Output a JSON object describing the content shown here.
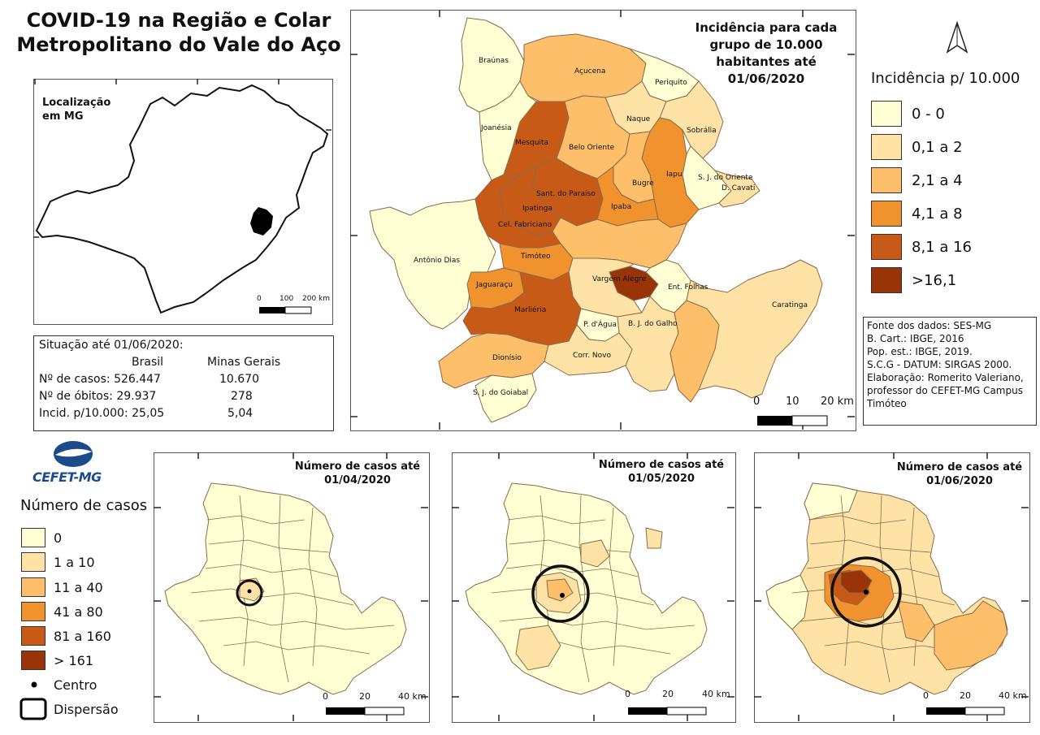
{
  "title": "COVID-19 na Região e Colar Metropolitano do Vale do Aço",
  "location_label": "Localização em MG",
  "location_scale": [
    "0",
    "100",
    "200 km"
  ],
  "stats": {
    "heading": "Situação até 01/06/2020:",
    "col_brasil": "Brasil",
    "col_mg": "Minas Gerais",
    "rows": [
      {
        "label": "Nº de casos: 526.447",
        "mg": "10.670"
      },
      {
        "label": "Nº de óbitos: 29.937",
        "mg": "278"
      },
      {
        "label": "Incid. p/10.000: 25,05",
        "mg": "5,04"
      }
    ]
  },
  "main_map": {
    "title": "Incidência para cada grupo de 10.000 habitantes até 01/06/2020",
    "scale": [
      "0",
      "10",
      "20 km"
    ],
    "municipalities": [
      {
        "name": "Braúnas"
      },
      {
        "name": "Açucena"
      },
      {
        "name": "Periquito"
      },
      {
        "name": "Joanésia"
      },
      {
        "name": "Naque"
      },
      {
        "name": "Sobrália"
      },
      {
        "name": "Mesquita"
      },
      {
        "name": "Belo Oriente"
      },
      {
        "name": "Iapu"
      },
      {
        "name": "S. J. do Oriente"
      },
      {
        "name": "Bugre"
      },
      {
        "name": "D. Cavati"
      },
      {
        "name": "Sant. do Paraíso"
      },
      {
        "name": "Ipatinga"
      },
      {
        "name": "Ipaba"
      },
      {
        "name": "Cel. Fabriciano"
      },
      {
        "name": "Antônio Dias"
      },
      {
        "name": "Timóteo"
      },
      {
        "name": "Vargem Alegre"
      },
      {
        "name": "Ent. Folhas"
      },
      {
        "name": "Jaguaraçu"
      },
      {
        "name": "Caratinga"
      },
      {
        "name": "Marliéria"
      },
      {
        "name": "B. J. do Galho"
      },
      {
        "name": "P. d'Água"
      },
      {
        "name": "Dionísio"
      },
      {
        "name": "Corr. Novo"
      },
      {
        "name": "S. J. do Goiabal"
      }
    ]
  },
  "incidence_legend": {
    "title": "Incidência p/ 10.000",
    "classes": [
      {
        "label": "0 - 0",
        "color": "#ffffd4"
      },
      {
        "label": "0,1 a 2",
        "color": "#fee2a6"
      },
      {
        "label": "2,1 a 4",
        "color": "#fdbf6a"
      },
      {
        "label": "4,1 a 8",
        "color": "#f0922e"
      },
      {
        "label": "8,1 a 16",
        "color": "#c85a18"
      },
      {
        "label": ">16,1",
        "color": "#983407"
      }
    ]
  },
  "sources": [
    "Fonte dos dados: SES-MG",
    "B. Cart.: IBGE, 2016",
    "Pop. est.: IBGE, 2019.",
    "S.C.G - DATUM: SIRGAS 2000.",
    "Elaboração: Romerito Valeriano,",
    "professor do CEFET-MG Campus",
    "Timóteo"
  ],
  "logo_text": "CEFET-MG",
  "cases_legend": {
    "title": "Número de casos",
    "classes": [
      {
        "label": "0",
        "color": "#ffffd4"
      },
      {
        "label": "1 a 10",
        "color": "#fee2a6"
      },
      {
        "label": "11 a 40",
        "color": "#fdbf6a"
      },
      {
        "label": "41 a 80",
        "color": "#f0922e"
      },
      {
        "label": "81 a 160",
        "color": "#c85a18"
      },
      {
        "label": "> 161",
        "color": "#983407"
      }
    ],
    "centro": "Centro",
    "dispersao": "Dispersão"
  },
  "small_maps": [
    {
      "title": "Número de casos até 01/04/2020",
      "scale": [
        "0",
        "20",
        "40 km"
      ]
    },
    {
      "title": "Número de casos até 01/05/2020",
      "scale": [
        "0",
        "20",
        "40 km"
      ]
    },
    {
      "title": "Número de casos até 01/06/2020",
      "scale": [
        "0",
        "20",
        "40 km"
      ]
    }
  ]
}
